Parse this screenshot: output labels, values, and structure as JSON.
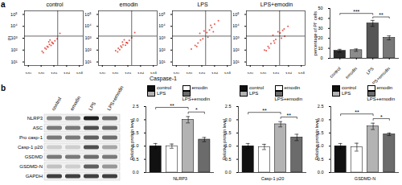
{
  "panel_labels": [
    "a",
    "b"
  ],
  "chart_data": [
    {
      "type": "scatter",
      "log": true,
      "x_label": "Caspase-1",
      "y_label": "PI",
      "color": "#e03a2f",
      "xlim": [
        5,
        200000
      ],
      "ylim": [
        5,
        200000
      ],
      "xticks": [
        {
          "value": 10,
          "label": "10¹"
        },
        {
          "value": 100,
          "label": "10²"
        },
        {
          "value": 1000,
          "label": "10³"
        },
        {
          "value": 10000,
          "label": "10⁴"
        },
        {
          "value": 100000,
          "label": "10⁵"
        }
      ],
      "yticks": [
        {
          "value": 10,
          "label": "10¹"
        },
        {
          "value": 100,
          "label": "10²"
        },
        {
          "value": 1000,
          "label": "10³"
        },
        {
          "value": 10000,
          "label": "10⁴"
        },
        {
          "value": 100000,
          "label": "10⁵"
        }
      ],
      "gate": {
        "x": 2000,
        "y": 1500
      },
      "panels": [
        {
          "title": "control",
          "x": [
            120,
            200,
            300,
            450,
            600,
            800,
            250,
            150,
            400,
            900,
            1200,
            350,
            500,
            700,
            1800,
            3000
          ],
          "y": [
            80,
            150,
            200,
            300,
            250,
            400,
            120,
            60,
            500,
            350,
            600,
            180,
            700,
            450,
            900,
            2500
          ]
        },
        {
          "title": "emodin",
          "x": [
            110,
            180,
            280,
            420,
            650,
            850,
            230,
            160,
            380,
            950,
            1300,
            330,
            520,
            750,
            2000,
            3500
          ],
          "y": [
            90,
            140,
            220,
            280,
            260,
            420,
            110,
            70,
            480,
            380,
            650,
            170,
            720,
            430,
            1100,
            3000
          ]
        },
        {
          "title": "LPS",
          "x": [
            150,
            300,
            500,
            800,
            1200,
            2500,
            4000,
            6000,
            10000,
            3000,
            700,
            1500,
            20000,
            8000,
            400,
            5000
          ],
          "y": [
            120,
            250,
            400,
            700,
            900,
            3000,
            5000,
            8000,
            15000,
            1200,
            2500,
            4000,
            30000,
            3500,
            200,
            12000
          ]
        },
        {
          "title": "LPS+emodin",
          "x": [
            130,
            250,
            420,
            700,
            1000,
            2200,
            3500,
            5000,
            600,
            1500,
            300,
            9000,
            800,
            2800,
            180,
            4500
          ],
          "y": [
            100,
            200,
            350,
            600,
            800,
            2800,
            4500,
            1500,
            1800,
            3500,
            150,
            10000,
            400,
            1000,
            90,
            6000
          ]
        }
      ]
    },
    {
      "type": "bar",
      "y_label": "percentage of PI⁺ cells",
      "tick_labels": true,
      "categories": [
        "control",
        "emodin",
        "LPS",
        "LPS+emodin"
      ],
      "values": [
        7.5,
        8.2,
        35,
        20.5
      ],
      "errors": [
        1.5,
        1.2,
        3,
        2
      ],
      "colors": [
        "#2b2b2b",
        "#8c8c8c",
        "#555555",
        "#777777"
      ],
      "ylim": [
        0,
        50
      ],
      "yticks": [
        0,
        10,
        20,
        30,
        40,
        50
      ],
      "significance": [
        {
          "between": [
            0,
            2
          ],
          "label": "***"
        },
        {
          "between": [
            2,
            3
          ],
          "label": "**"
        }
      ]
    },
    {
      "type": "bar",
      "x_label": "NLRP3",
      "y_label": "Relative protein level",
      "tick_labels": "y",
      "legend": "top",
      "categories": [
        "control",
        "emodin",
        "LPS",
        "LPS+emodin"
      ],
      "values": [
        1.0,
        1.0,
        2.0,
        1.25
      ],
      "errors": [
        0.1,
        0.08,
        0.12,
        0.08
      ],
      "colors": [
        "#111111",
        "#ffffff",
        "#b3b3b3",
        "#6b6b6b"
      ],
      "ylim": [
        0,
        2.5
      ],
      "yticks": [
        {
          "value": 0,
          "label": "0.0"
        },
        0.5,
        {
          "value": 1,
          "label": "1.0"
        },
        1.5,
        {
          "value": 2,
          "label": "2.0"
        },
        2.5
      ],
      "significance": [
        {
          "between": [
            0,
            2
          ],
          "label": "**"
        },
        {
          "between": [
            2,
            3
          ],
          "label": "*"
        }
      ]
    },
    {
      "type": "bar",
      "x_label": "Casp-1 p20",
      "y_label": "Relative protein level",
      "tick_labels": "y",
      "legend": "top",
      "categories": [
        "control",
        "emodin",
        "LPS",
        "LPS+emodin"
      ],
      "values": [
        1.0,
        0.97,
        1.83,
        1.33
      ],
      "errors": [
        0.1,
        0.1,
        0.1,
        0.12
      ],
      "colors": [
        "#111111",
        "#ffffff",
        "#b3b3b3",
        "#6b6b6b"
      ],
      "ylim": [
        0,
        2.5
      ],
      "yticks": [
        {
          "value": 0,
          "label": "0.0"
        },
        0.5,
        {
          "value": 1,
          "label": "1.0"
        },
        1.5,
        {
          "value": 2,
          "label": "2.0"
        },
        2.5
      ],
      "significance": [
        {
          "between": [
            0,
            2
          ],
          "label": "**"
        },
        {
          "between": [
            2,
            3
          ],
          "label": "**"
        }
      ]
    },
    {
      "type": "bar",
      "x_label": "GSDMD-N",
      "y_label": "Relative protein level",
      "tick_labels": "y",
      "legend": "top",
      "categories": [
        "control",
        "emodin",
        "LPS",
        "LPS+emodin"
      ],
      "values": [
        1.0,
        0.96,
        1.75,
        1.45
      ],
      "errors": [
        0.1,
        0.15,
        0.12,
        0.05
      ],
      "colors": [
        "#111111",
        "#ffffff",
        "#b3b3b3",
        "#6b6b6b"
      ],
      "ylim": [
        0,
        2.5
      ],
      "yticks": [
        {
          "value": 0,
          "label": "0.0"
        },
        0.5,
        {
          "value": 1,
          "label": "1.0"
        },
        1.5,
        {
          "value": 2,
          "label": "2.0"
        },
        2.5
      ],
      "significance": [
        {
          "between": [
            0,
            2
          ],
          "label": "**"
        },
        {
          "between": [
            2,
            3
          ],
          "label": "*"
        }
      ]
    }
  ],
  "blot": {
    "lanes": [
      "control",
      "emodin",
      "LPS",
      "LPS+emodin"
    ],
    "rows": [
      {
        "label": "NLRP3",
        "intensity": [
          0.55,
          0.55,
          0.9,
          0.65
        ]
      },
      {
        "label": "ASC",
        "intensity": [
          0.6,
          0.6,
          0.75,
          0.65
        ]
      },
      {
        "label": "Pro casp-1",
        "intensity": [
          0.6,
          0.6,
          0.7,
          0.65
        ]
      },
      {
        "label": "Casp-1 p20",
        "intensity": [
          0.3,
          0.3,
          0.75,
          0.45
        ]
      },
      {
        "label": "GSDMD",
        "intensity": [
          0.6,
          0.6,
          0.65,
          0.6
        ]
      },
      {
        "label": "GSDMD-N",
        "intensity": [
          0.35,
          0.3,
          0.7,
          0.5
        ]
      },
      {
        "label": "GAPDH",
        "intensity": [
          0.8,
          0.8,
          0.8,
          0.8
        ]
      }
    ]
  }
}
